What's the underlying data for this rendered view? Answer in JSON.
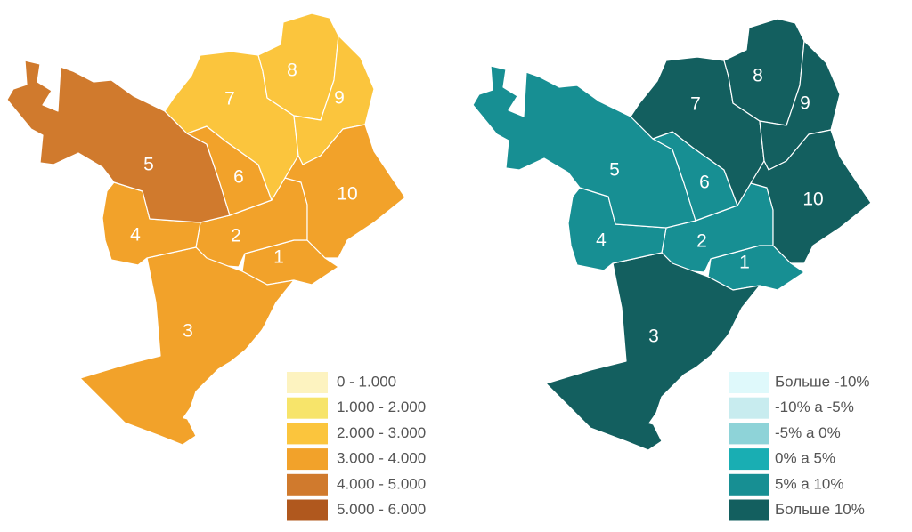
{
  "maps": [
    {
      "legend": [
        {
          "label": "0 - 1.000",
          "color": "#fdf3c0"
        },
        {
          "label": "1.000 - 2.000",
          "color": "#f7e46a"
        },
        {
          "label": "2.000 - 3.000",
          "color": "#fbc53d"
        },
        {
          "label": "3.000 - 4.000",
          "color": "#f2a22a"
        },
        {
          "label": "4.000 - 5.000",
          "color": "#d07a2d"
        },
        {
          "label": "5.000 - 6.000",
          "color": "#b0581e"
        }
      ],
      "districts": [
        {
          "label": "1",
          "color": "#f2a22a"
        },
        {
          "label": "2",
          "color": "#f2a22a"
        },
        {
          "label": "3",
          "color": "#f2a22a"
        },
        {
          "label": "4",
          "color": "#f2a22a"
        },
        {
          "label": "5",
          "color": "#d07a2d"
        },
        {
          "label": "6",
          "color": "#f2a22a"
        },
        {
          "label": "7",
          "color": "#fbc53d"
        },
        {
          "label": "8",
          "color": "#fbc53d"
        },
        {
          "label": "9",
          "color": "#fbc53d"
        },
        {
          "label": "10",
          "color": "#f2a22a"
        }
      ]
    },
    {
      "legend": [
        {
          "label": "Больше -10%",
          "color": "#dff9fb"
        },
        {
          "label": "-10% а -5%",
          "color": "#c8ecef"
        },
        {
          "label": "-5% а 0%",
          "color": "#8ed3d8"
        },
        {
          "label": "0% а 5%",
          "color": "#19aeb3"
        },
        {
          "label": "5% а 10%",
          "color": "#178f93"
        },
        {
          "label": "Больше 10%",
          "color": "#135f5f"
        }
      ],
      "districts": [
        {
          "label": "1",
          "color": "#178f93"
        },
        {
          "label": "2",
          "color": "#178f93"
        },
        {
          "label": "3",
          "color": "#135f5f"
        },
        {
          "label": "4",
          "color": "#178f93"
        },
        {
          "label": "5",
          "color": "#178f93"
        },
        {
          "label": "6",
          "color": "#178f93"
        },
        {
          "label": "7",
          "color": "#135f5f"
        },
        {
          "label": "8",
          "color": "#135f5f"
        },
        {
          "label": "9",
          "color": "#135f5f"
        },
        {
          "label": "10",
          "color": "#135f5f"
        }
      ]
    }
  ]
}
